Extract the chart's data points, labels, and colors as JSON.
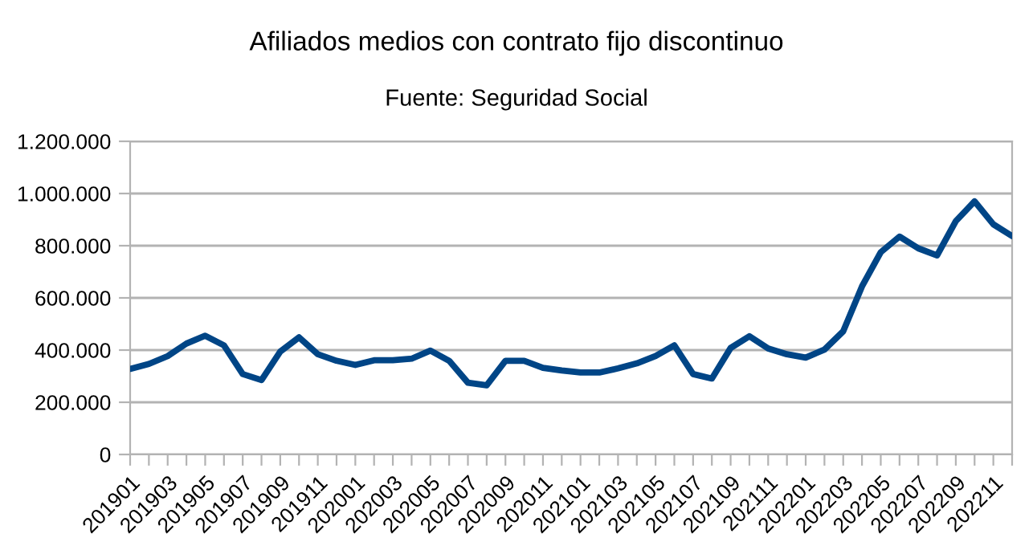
{
  "chart_data": {
    "type": "line",
    "title": "Afiliados medios con contrato fijo discontinuo",
    "subtitle": "Fuente: Seguridad Social",
    "categories": [
      "201901",
      null,
      "201903",
      null,
      "201905",
      null,
      "201907",
      null,
      "201909",
      null,
      "201911",
      null,
      "202001",
      null,
      "202003",
      null,
      "202005",
      null,
      "202007",
      null,
      "202009",
      null,
      "202011",
      null,
      "202101",
      null,
      "202103",
      null,
      "202105",
      null,
      "202107",
      null,
      "202109",
      null,
      "202111",
      null,
      "202201",
      null,
      "202203",
      null,
      "202205",
      null,
      "202207",
      null,
      "202209",
      null,
      "202211",
      null
    ],
    "series": [
      {
        "color": "#004586",
        "values": [
          328000,
          347000,
          377000,
          425000,
          455000,
          418000,
          308000,
          285000,
          394000,
          449000,
          384000,
          359000,
          343000,
          361000,
          361000,
          367000,
          398000,
          359000,
          275000,
          265000,
          359000,
          359000,
          332000,
          322000,
          314000,
          314000,
          330000,
          349000,
          377000,
          418000,
          308000,
          291000,
          408000,
          453000,
          406000,
          384000,
          371000,
          402000,
          472000,
          644000,
          775000,
          835000,
          790000,
          763000,
          894000,
          970000,
          882000,
          837000
        ]
      }
    ],
    "ylim": [
      0,
      1200000
    ],
    "yticks": [
      {
        "value": 0,
        "label": "0"
      },
      {
        "value": 200000,
        "label": "200.000"
      },
      {
        "value": 400000,
        "label": "400.000"
      },
      {
        "value": 600000,
        "label": "600.000"
      },
      {
        "value": 800000,
        "label": "800.000"
      },
      {
        "value": 1000000,
        "label": "1.000.000"
      },
      {
        "value": 1200000,
        "label": "1.200.000"
      }
    ],
    "grid": "y",
    "marker": "none",
    "line_style": "solid"
  }
}
